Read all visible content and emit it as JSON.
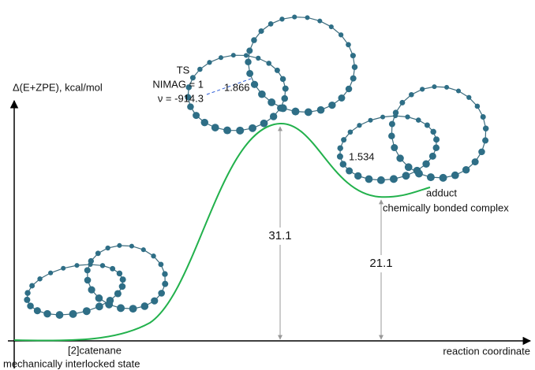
{
  "axes": {
    "y_label": "Δ(E+ZPE), kcal/mol",
    "x_label": "reaction coordinate"
  },
  "states": [
    {
      "name": "[2]catenane",
      "description": "mechanically interlocked state"
    },
    {
      "name": "TS",
      "lines": [
        "NIMAG = 1",
        "ν = -914.3"
      ],
      "bond": 1.866,
      "energy": 31.1
    },
    {
      "name": "adduct",
      "description": "chemically bonded complex",
      "bond": 1.534,
      "energy": 21.1
    }
  ]
}
